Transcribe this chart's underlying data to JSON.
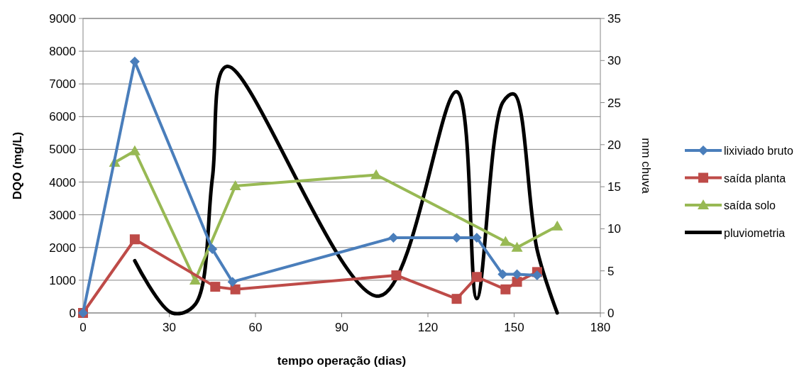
{
  "chart_data": {
    "type": "line",
    "xlabel": "tempo operação (dias)",
    "ylabel": "DQO (mg/L)",
    "y2label": "mm chuva",
    "xlim": [
      0,
      180
    ],
    "xticks": [
      0,
      30,
      60,
      90,
      120,
      150,
      180
    ],
    "ylim": [
      0,
      9000
    ],
    "yticks": [
      0,
      1000,
      2000,
      3000,
      4000,
      5000,
      6000,
      7000,
      8000,
      9000
    ],
    "y2lim": [
      0,
      35
    ],
    "y2ticks": [
      0,
      5,
      10,
      15,
      20,
      25,
      30,
      35
    ],
    "grid": "y",
    "legend": "right",
    "series": [
      {
        "name": "lixiviado bruto",
        "color": "#4a7ebb",
        "marker": "diamond",
        "x": [
          0,
          18,
          45,
          52,
          108,
          130,
          137,
          146,
          151,
          158
        ],
        "values": [
          0,
          7680,
          1950,
          950,
          2300,
          2300,
          2300,
          1180,
          1180,
          1150
        ]
      },
      {
        "name": "saída planta",
        "color": "#be4b48",
        "marker": "square",
        "x": [
          0,
          18,
          46,
          53,
          109,
          130,
          137,
          147,
          151,
          158
        ],
        "values": [
          0,
          2250,
          800,
          720,
          1150,
          430,
          1100,
          720,
          950,
          1250
        ]
      },
      {
        "name": "saída solo",
        "color": "#98b954",
        "marker": "triangle",
        "x": [
          11,
          18,
          39,
          53,
          102,
          147,
          151,
          165
        ],
        "values": [
          4600,
          4950,
          1000,
          3880,
          4220,
          2180,
          2000,
          2650
        ]
      },
      {
        "name": "pluviometria",
        "color": "#000000",
        "marker": "none",
        "axis": "y2",
        "x": [
          18,
          31,
          39,
          45,
          50,
          103,
          130,
          137,
          146,
          150,
          158,
          165
        ],
        "values": [
          6.2,
          0,
          1,
          16,
          29.3,
          2,
          26.3,
          1.7,
          25,
          26,
          7.5,
          0
        ]
      }
    ]
  }
}
